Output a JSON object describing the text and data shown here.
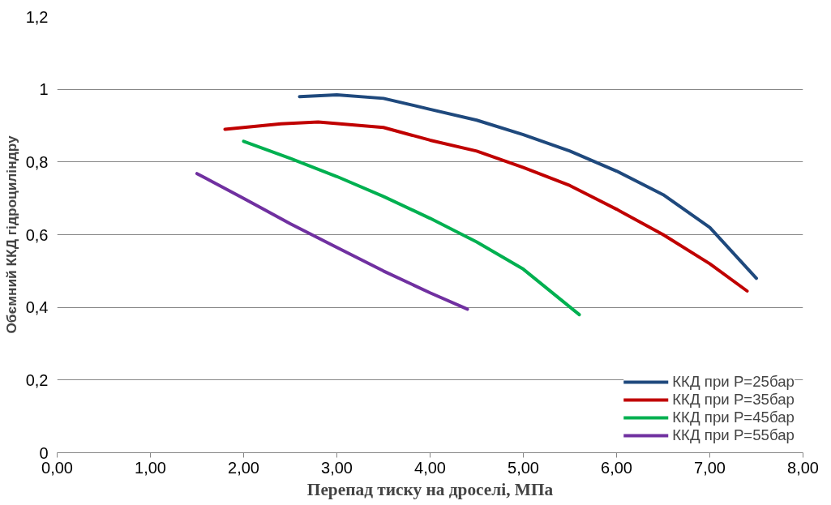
{
  "chart_data": {
    "type": "line",
    "xlabel": "Перепад тиску на дроселі, МПа",
    "ylabel": "Обємний ККД гідроциліндру",
    "xlim": [
      0,
      8
    ],
    "xticks": [
      {
        "value": 0,
        "label": "0,00"
      },
      {
        "value": 1,
        "label": "1,00"
      },
      {
        "value": 2,
        "label": "2,00"
      },
      {
        "value": 3,
        "label": "3,00"
      },
      {
        "value": 4,
        "label": "4,00"
      },
      {
        "value": 5,
        "label": "5,00"
      },
      {
        "value": 6,
        "label": "6,00"
      },
      {
        "value": 7,
        "label": "7,00"
      },
      {
        "value": 8,
        "label": "8,00"
      }
    ],
    "ylim": [
      0,
      1.2
    ],
    "yticks": [
      0,
      {
        "value": 0.2,
        "label": "0,2"
      },
      {
        "value": 0.4,
        "label": "0,4"
      },
      {
        "value": 0.6,
        "label": "0,6"
      },
      {
        "value": 0.8,
        "label": "0,8"
      },
      1,
      {
        "value": 1.2,
        "label": "1,2"
      }
    ],
    "grid": "y",
    "legend": "bottom right",
    "marker": "none",
    "line_style": "solid",
    "series": [
      {
        "name": "ККД при Р=25бар",
        "color": "#1f497d",
        "x": [
          2.6,
          3.0,
          3.5,
          4.0,
          4.5,
          5.0,
          5.5,
          6.0,
          6.5,
          7.0,
          7.5
        ],
        "values": [
          0.98,
          0.985,
          0.975,
          0.945,
          0.915,
          0.875,
          0.83,
          0.775,
          0.71,
          0.62,
          0.48
        ]
      },
      {
        "name": "ККД при Р=35бар",
        "color": "#c00000",
        "x": [
          1.8,
          2.4,
          2.8,
          3.5,
          4.0,
          4.5,
          5.0,
          5.5,
          6.0,
          6.5,
          7.0,
          7.4
        ],
        "values": [
          0.89,
          0.905,
          0.91,
          0.895,
          0.86,
          0.83,
          0.785,
          0.735,
          0.67,
          0.6,
          0.52,
          0.445
        ]
      },
      {
        "name": "ККД при Р=45бар",
        "color": "#00b050",
        "x": [
          2.0,
          2.5,
          3.0,
          3.5,
          4.0,
          4.5,
          5.0,
          5.6
        ],
        "values": [
          0.857,
          0.81,
          0.76,
          0.705,
          0.645,
          0.58,
          0.505,
          0.38
        ]
      },
      {
        "name": "ККД при Р=55бар",
        "color": "#7030a0",
        "x": [
          1.5,
          2.0,
          2.5,
          3.0,
          3.5,
          4.0,
          4.4
        ],
        "values": [
          0.768,
          0.7,
          0.63,
          0.565,
          0.5,
          0.44,
          0.395
        ]
      }
    ]
  }
}
